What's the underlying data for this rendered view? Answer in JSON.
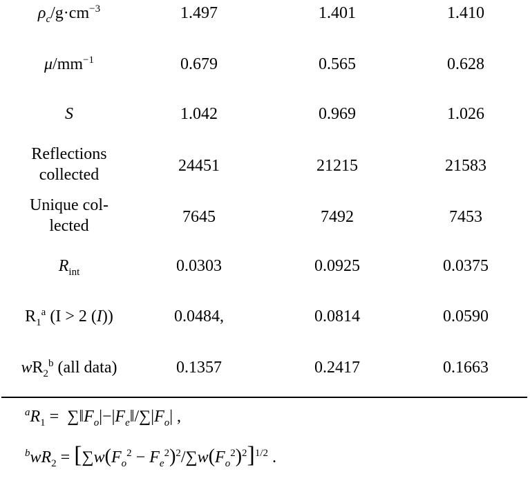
{
  "rows": [
    {
      "label": "ρc/g·cm−3",
      "v": [
        "1.497",
        "1.401",
        "1.410"
      ]
    },
    {
      "label": "μ/mm−1",
      "v": [
        "0.679",
        "0.565",
        "0.628"
      ]
    },
    {
      "label": "S",
      "v": [
        "1.042",
        "0.969",
        "1.026"
      ]
    },
    {
      "label_lines": [
        "Reflections",
        "collected"
      ],
      "v": [
        "24451",
        "21215",
        "21583"
      ]
    },
    {
      "label_lines": [
        "Unique col-",
        "lected"
      ],
      "v": [
        "7645",
        "7492",
        "7453"
      ]
    },
    {
      "label": "Rint",
      "v": [
        "0.0303",
        "0.0925",
        "0.0375"
      ]
    },
    {
      "label": "R1a (I > 2 (I))",
      "v": [
        "0.0484,",
        "0.0814",
        "0.0590"
      ]
    },
    {
      "label": "wR2b (all data)",
      "v": [
        "0.1357",
        "0.2417",
        "0.1663"
      ]
    }
  ],
  "footnotes": {
    "a": "aR1 = ∑‖Fo|−|Fe‖/∑|Fo| ,",
    "b": "bwR2 = [∑w(Fo2 − Fe2)2/∑w(Fo2)2]1/2 ."
  }
}
